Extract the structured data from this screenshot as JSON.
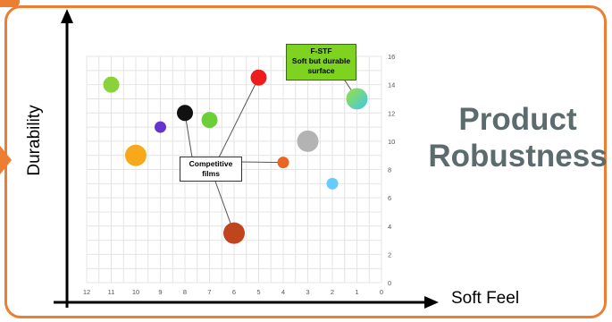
{
  "title": {
    "line1": "Product",
    "line2": "Robustness"
  },
  "chart_data": {
    "type": "scatter",
    "xlabel": "Soft Feel",
    "ylabel": "Durability",
    "xlim": [
      0,
      12
    ],
    "x_reversed": true,
    "ylim": [
      0,
      16
    ],
    "x_ticks": [
      "12",
      "11",
      "10",
      "9",
      "8",
      "7",
      "6",
      "5",
      "4",
      "3",
      "2",
      "1",
      "0"
    ],
    "y_ticks": [
      "0",
      "2",
      "4",
      "6",
      "8",
      "10",
      "12",
      "14",
      "16"
    ],
    "grid": true,
    "points": [
      {
        "x": 11,
        "y": 14,
        "color": "#8bd13a",
        "size": "medium"
      },
      {
        "x": 5,
        "y": 14.5,
        "color": "#ee1c1c",
        "size": "medium"
      },
      {
        "x": 1,
        "y": 13,
        "color": "#66e0c8",
        "size": "large"
      },
      {
        "x": 8,
        "y": 12,
        "color": "#111111",
        "size": "medium"
      },
      {
        "x": 7,
        "y": 11.5,
        "color": "#6ccf3a",
        "size": "medium"
      },
      {
        "x": 9,
        "y": 11,
        "color": "#6633cc",
        "size": "small"
      },
      {
        "x": 3,
        "y": 10,
        "color": "#b3b3b3",
        "size": "large"
      },
      {
        "x": 10,
        "y": 9,
        "color": "#f7a91b",
        "size": "large"
      },
      {
        "x": 4,
        "y": 8.5,
        "color": "#ea6424",
        "size": "small"
      },
      {
        "x": 2,
        "y": 7,
        "color": "#66ccff",
        "size": "small"
      },
      {
        "x": 6,
        "y": 3.5,
        "color": "#c0451c",
        "size": "large"
      }
    ],
    "annotations": [
      {
        "id": "competitive",
        "lines": [
          "Competitive",
          "films"
        ]
      },
      {
        "id": "fstf",
        "lines": [
          "F-STF",
          "Soft but durable",
          "surface"
        ]
      }
    ]
  }
}
